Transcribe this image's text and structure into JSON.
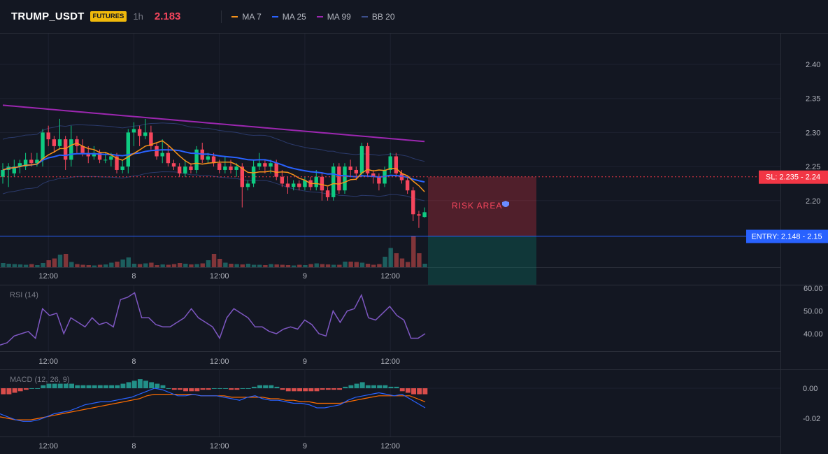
{
  "header": {
    "symbol": "TRUMP_USDT",
    "badge": "FUTURES",
    "timeframe": "1h",
    "last_price": "2.183",
    "legend": [
      {
        "label": "MA 7",
        "color": "#f7931a"
      },
      {
        "label": "MA 25",
        "color": "#2962ff"
      },
      {
        "label": "MA 99",
        "color": "#9c27b0"
      },
      {
        "label": "BB 20",
        "color": "#3c4f8c"
      }
    ]
  },
  "colors": {
    "up": "#26a69a",
    "down": "#ef5350",
    "up_bright": "#0ecb81",
    "down_bright": "#f6465d",
    "entry": "#2962ff",
    "sl": "#f23645",
    "rsi": "#7e57c2",
    "macd": "#2962ff",
    "signal": "#ff6d00"
  },
  "chart_data": [
    {
      "type": "candlestick",
      "y_ticks": [
        "2.40",
        "2.35",
        "2.30",
        "2.25",
        "2.20"
      ],
      "y_range": [
        2.15,
        2.43
      ],
      "x_ticks": [
        "12:00",
        "8",
        "12:00",
        "9",
        "12:00"
      ],
      "candles": [
        [
          2.235,
          2.245,
          2.225,
          2.255
        ],
        [
          2.245,
          2.25,
          2.22,
          2.255
        ],
        [
          2.24,
          2.25,
          2.235,
          2.26
        ],
        [
          2.25,
          2.255,
          2.24,
          2.26
        ],
        [
          2.25,
          2.26,
          2.245,
          2.27
        ],
        [
          2.26,
          2.255,
          2.25,
          2.27
        ],
        [
          2.255,
          2.26,
          2.25,
          2.27
        ],
        [
          2.26,
          2.3,
          2.25,
          2.305
        ],
        [
          2.3,
          2.29,
          2.28,
          2.31
        ],
        [
          2.29,
          2.28,
          2.27,
          2.295
        ],
        [
          2.28,
          2.29,
          2.275,
          2.32
        ],
        [
          2.29,
          2.26,
          2.245,
          2.295
        ],
        [
          2.26,
          2.29,
          2.25,
          2.31
        ],
        [
          2.29,
          2.28,
          2.27,
          2.295
        ],
        [
          2.28,
          2.27,
          2.265,
          2.29
        ],
        [
          2.27,
          2.265,
          2.255,
          2.28
        ],
        [
          2.265,
          2.27,
          2.26,
          2.28
        ],
        [
          2.27,
          2.26,
          2.255,
          2.275
        ],
        [
          2.26,
          2.26,
          2.255,
          2.27
        ],
        [
          2.26,
          2.265,
          2.25,
          2.27
        ],
        [
          2.265,
          2.245,
          2.24,
          2.27
        ],
        [
          2.245,
          2.25,
          2.24,
          2.26
        ],
        [
          2.25,
          2.3,
          2.24,
          2.305
        ],
        [
          2.3,
          2.305,
          2.28,
          2.315
        ],
        [
          2.305,
          2.295,
          2.28,
          2.31
        ],
        [
          2.295,
          2.3,
          2.29,
          2.32
        ],
        [
          2.3,
          2.28,
          2.275,
          2.31
        ],
        [
          2.28,
          2.265,
          2.26,
          2.285
        ],
        [
          2.265,
          2.27,
          2.255,
          2.29
        ],
        [
          2.27,
          2.255,
          2.25,
          2.28
        ],
        [
          2.255,
          2.25,
          2.245,
          2.26
        ],
        [
          2.25,
          2.24,
          2.235,
          2.255
        ],
        [
          2.24,
          2.25,
          2.235,
          2.26
        ],
        [
          2.25,
          2.245,
          2.24,
          2.255
        ],
        [
          2.245,
          2.275,
          2.24,
          2.28
        ],
        [
          2.275,
          2.26,
          2.255,
          2.285
        ],
        [
          2.26,
          2.265,
          2.255,
          2.27
        ],
        [
          2.265,
          2.255,
          2.25,
          2.27
        ],
        [
          2.255,
          2.245,
          2.24,
          2.26
        ],
        [
          2.245,
          2.25,
          2.24,
          2.265
        ],
        [
          2.25,
          2.245,
          2.24,
          2.26
        ],
        [
          2.245,
          2.25,
          2.235,
          2.255
        ],
        [
          2.25,
          2.22,
          2.19,
          2.255
        ],
        [
          2.22,
          2.225,
          2.215,
          2.23
        ],
        [
          2.225,
          2.25,
          2.22,
          2.26
        ],
        [
          2.25,
          2.255,
          2.245,
          2.27
        ],
        [
          2.255,
          2.25,
          2.24,
          2.26
        ],
        [
          2.25,
          2.255,
          2.24,
          2.26
        ],
        [
          2.255,
          2.235,
          2.23,
          2.26
        ],
        [
          2.235,
          2.225,
          2.22,
          2.245
        ],
        [
          2.225,
          2.22,
          2.21,
          2.235
        ],
        [
          2.22,
          2.225,
          2.215,
          2.23
        ],
        [
          2.225,
          2.22,
          2.215,
          2.23
        ],
        [
          2.22,
          2.23,
          2.215,
          2.235
        ],
        [
          2.23,
          2.22,
          2.215,
          2.235
        ],
        [
          2.22,
          2.235,
          2.215,
          2.245
        ],
        [
          2.235,
          2.215,
          2.2,
          2.24
        ],
        [
          2.215,
          2.205,
          2.2,
          2.22
        ],
        [
          2.205,
          2.25,
          2.2,
          2.255
        ],
        [
          2.25,
          2.215,
          2.21,
          2.255
        ],
        [
          2.215,
          2.25,
          2.21,
          2.255
        ],
        [
          2.25,
          2.245,
          2.235,
          2.26
        ],
        [
          2.245,
          2.24,
          2.23,
          2.25
        ],
        [
          2.24,
          2.28,
          2.235,
          2.285
        ],
        [
          2.28,
          2.24,
          2.235,
          2.285
        ],
        [
          2.24,
          2.235,
          2.225,
          2.245
        ],
        [
          2.235,
          2.225,
          2.215,
          2.24
        ],
        [
          2.225,
          2.245,
          2.22,
          2.25
        ],
        [
          2.245,
          2.265,
          2.24,
          2.27
        ],
        [
          2.265,
          2.24,
          2.235,
          2.27
        ],
        [
          2.24,
          2.23,
          2.225,
          2.245
        ],
        [
          2.23,
          2.215,
          2.21,
          2.235
        ],
        [
          2.215,
          2.18,
          2.17,
          2.22
        ],
        [
          2.18,
          2.178,
          2.16,
          2.185
        ],
        [
          2.176,
          2.183,
          2.175,
          2.19
        ]
      ],
      "volumes": [
        12,
        10,
        9,
        8,
        7,
        9,
        6,
        12,
        20,
        25,
        36,
        38,
        15,
        9,
        7,
        6,
        5,
        7,
        8,
        13,
        16,
        22,
        28,
        10,
        9,
        11,
        13,
        6,
        8,
        7,
        9,
        12,
        10,
        8,
        9,
        11,
        20,
        38,
        24,
        13,
        10,
        9,
        8,
        10,
        7,
        7,
        6,
        9,
        8,
        7,
        6,
        5,
        7,
        6,
        9,
        11,
        9,
        8,
        7,
        7,
        16,
        16,
        15,
        13,
        10,
        7,
        9,
        30,
        55,
        40,
        25,
        15,
        90,
        40,
        10
      ],
      "levels": {
        "sl_label": "SL: 2.235 - 2.24",
        "sl_value": 2.235,
        "entry_label": "ENTRY: 2.148 - 2.15",
        "entry_value": 2.148
      },
      "annotation": "RISK AREA"
    },
    {
      "type": "line",
      "title": "RSI (14)",
      "y_ticks": [
        "60.00",
        "50.00",
        "40.00"
      ],
      "y_range": [
        31,
        64
      ],
      "x_ticks": [
        "12:00",
        "8",
        "12:00",
        "9",
        "12:00"
      ],
      "values": [
        35,
        36,
        39,
        40,
        41,
        38,
        51,
        48,
        49,
        40,
        47,
        45,
        43,
        47,
        44,
        45,
        43,
        55,
        56,
        58,
        47,
        47,
        44,
        43,
        43,
        45,
        47,
        51,
        47,
        45,
        43,
        38,
        47,
        51,
        49,
        47,
        43,
        43,
        41,
        40,
        42,
        43,
        42,
        46,
        44,
        40,
        39,
        50,
        45,
        50,
        51,
        57,
        47,
        46,
        49,
        52,
        48,
        46,
        38,
        38,
        40
      ]
    },
    {
      "type": "bar",
      "title": "MACD (12, 26, 9)",
      "y_ticks": [
        "0.00",
        "-0.02"
      ],
      "y_range": [
        -0.03,
        0.012
      ],
      "x_ticks": [
        "12:00",
        "8",
        "12:00",
        "9",
        "12:00"
      ],
      "histogram": [
        -0.004,
        -0.004,
        -0.003,
        -0.002,
        -0.001,
        0.0,
        0.0,
        0.002,
        0.003,
        0.003,
        0.003,
        0.003,
        0.003,
        0.002,
        0.002,
        0.002,
        0.002,
        0.002,
        0.002,
        0.002,
        0.002,
        0.003,
        0.004,
        0.005,
        0.006,
        0.005,
        0.004,
        0.003,
        0.002,
        0.0,
        -0.001,
        -0.001,
        -0.002,
        -0.002,
        -0.002,
        -0.001,
        -0.001,
        0.0,
        0.0,
        0.0,
        -0.001,
        -0.001,
        0.0,
        0.0,
        0.001,
        0.002,
        0.002,
        0.002,
        0.001,
        -0.001,
        -0.002,
        -0.002,
        -0.002,
        -0.002,
        -0.002,
        -0.002,
        -0.001,
        -0.001,
        -0.001,
        -0.001,
        0.001,
        0.002,
        0.003,
        0.004,
        0.002,
        0.002,
        0.002,
        0.002,
        0.001,
        0.001,
        -0.002,
        -0.003,
        -0.004,
        -0.004,
        -0.004
      ],
      "macd": [
        -0.017,
        -0.019,
        -0.021,
        -0.022,
        -0.022,
        -0.021,
        -0.019,
        -0.017,
        -0.016,
        -0.015,
        -0.013,
        -0.011,
        -0.01,
        -0.009,
        -0.009,
        -0.008,
        -0.007,
        -0.006,
        -0.004,
        -0.002,
        0.0,
        -0.001,
        -0.003,
        -0.005,
        -0.005,
        -0.004,
        -0.005,
        -0.005,
        -0.005,
        -0.006,
        -0.007,
        -0.008,
        -0.006,
        -0.005,
        -0.007,
        -0.008,
        -0.008,
        -0.009,
        -0.01,
        -0.01,
        -0.011,
        -0.013,
        -0.013,
        -0.012,
        -0.011,
        -0.008,
        -0.006,
        -0.005,
        -0.004,
        -0.003,
        -0.004,
        -0.005,
        -0.004,
        -0.007,
        -0.01,
        -0.013
      ],
      "signal": [
        -0.019,
        -0.02,
        -0.021,
        -0.021,
        -0.021,
        -0.02,
        -0.019,
        -0.018,
        -0.017,
        -0.016,
        -0.015,
        -0.014,
        -0.013,
        -0.012,
        -0.011,
        -0.01,
        -0.009,
        -0.008,
        -0.007,
        -0.005,
        -0.004,
        -0.004,
        -0.004,
        -0.004,
        -0.004,
        -0.004,
        -0.005,
        -0.005,
        -0.005,
        -0.005,
        -0.006,
        -0.006,
        -0.006,
        -0.006,
        -0.006,
        -0.007,
        -0.007,
        -0.008,
        -0.008,
        -0.009,
        -0.009,
        -0.01,
        -0.01,
        -0.01,
        -0.01,
        -0.009,
        -0.008,
        -0.007,
        -0.006,
        -0.005,
        -0.005,
        -0.005,
        -0.005,
        -0.005,
        -0.007,
        -0.009
      ]
    }
  ]
}
